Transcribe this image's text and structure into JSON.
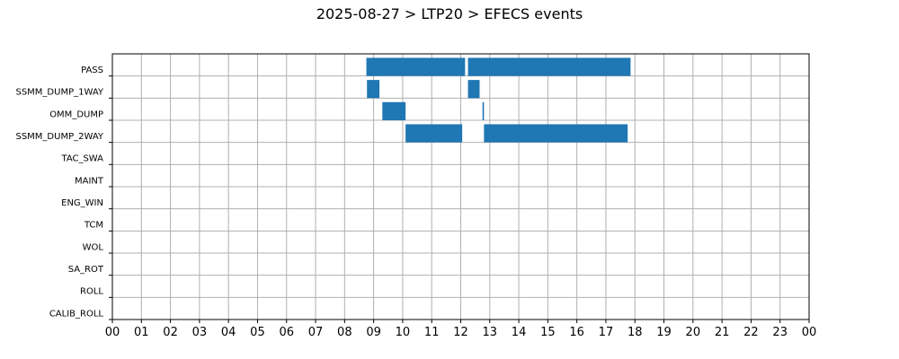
{
  "chart_data": {
    "type": "bar",
    "orientation": "horizontal-timeline",
    "title": "2025-08-27 > LTP20 > EFECS events",
    "xlabel": "",
    "ylabel": "",
    "xlim": [
      0,
      24
    ],
    "x_tick_labels": [
      "00",
      "01",
      "02",
      "03",
      "04",
      "05",
      "06",
      "07",
      "08",
      "09",
      "10",
      "11",
      "12",
      "13",
      "14",
      "15",
      "16",
      "17",
      "18",
      "19",
      "20",
      "21",
      "22",
      "23",
      "00"
    ],
    "grid": true,
    "categories": [
      "PASS",
      "SSMM_DUMP_1WAY",
      "OMM_DUMP",
      "SSMM_DUMP_2WAY",
      "TAC_SWA",
      "MAINT",
      "ENG_WIN",
      "TCM",
      "WOL",
      "SA_ROT",
      "ROLL",
      "CALIB_ROLL"
    ],
    "events": [
      {
        "category": "PASS",
        "start": 8.75,
        "end": 12.15
      },
      {
        "category": "PASS",
        "start": 12.25,
        "end": 17.85
      },
      {
        "category": "SSMM_DUMP_1WAY",
        "start": 8.77,
        "end": 9.2
      },
      {
        "category": "SSMM_DUMP_1WAY",
        "start": 12.25,
        "end": 12.65
      },
      {
        "category": "OMM_DUMP",
        "start": 9.3,
        "end": 10.1
      },
      {
        "category": "OMM_DUMP",
        "start": 12.75,
        "end": 12.8
      },
      {
        "category": "SSMM_DUMP_2WAY",
        "start": 10.1,
        "end": 12.05
      },
      {
        "category": "SSMM_DUMP_2WAY",
        "start": 12.8,
        "end": 17.75
      }
    ],
    "bar_color": "#1f77b4"
  }
}
